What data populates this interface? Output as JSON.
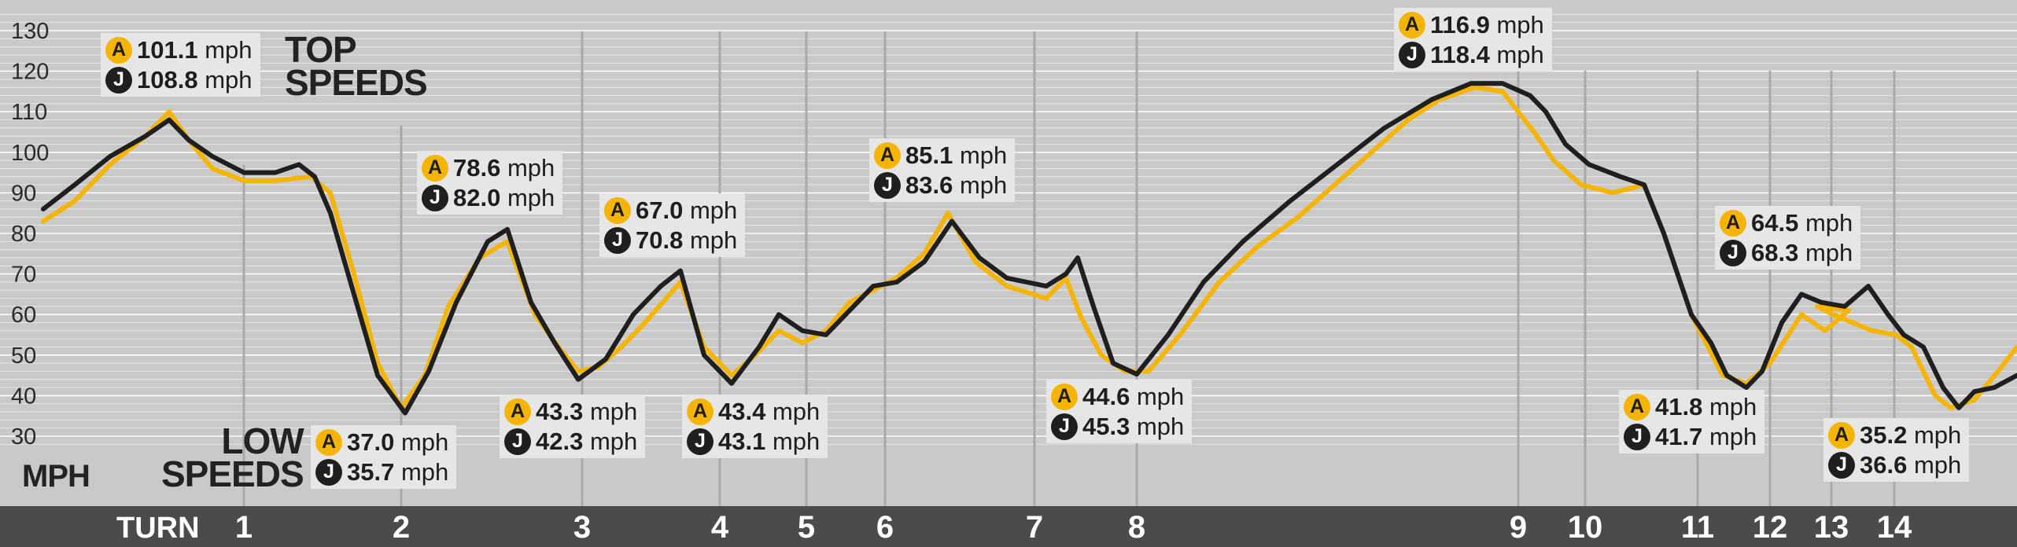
{
  "chart_data": {
    "type": "line",
    "ylabel": "MPH",
    "ylim": [
      20,
      135
    ],
    "yticks": [
      30,
      40,
      50,
      60,
      70,
      80,
      90,
      100,
      110,
      120,
      130
    ],
    "xlim": [
      0,
      2564
    ],
    "x_axis_label": "TURN",
    "colors": {
      "A": "#f4b400",
      "J": "#1f1f1f"
    },
    "series": [
      {
        "key": "A",
        "points": [
          [
            55,
            83
          ],
          [
            95,
            88
          ],
          [
            140,
            97
          ],
          [
            185,
            104
          ],
          [
            215,
            110
          ],
          [
            240,
            103
          ],
          [
            270,
            96
          ],
          [
            310,
            93
          ],
          [
            350,
            93
          ],
          [
            395,
            94
          ],
          [
            420,
            90
          ],
          [
            450,
            70
          ],
          [
            480,
            48
          ],
          [
            510,
            37
          ],
          [
            540,
            45
          ],
          [
            570,
            62
          ],
          [
            610,
            74
          ],
          [
            645,
            78
          ],
          [
            680,
            60
          ],
          [
            710,
            52
          ],
          [
            735,
            46
          ],
          [
            760,
            47
          ],
          [
            790,
            52
          ],
          [
            820,
            58
          ],
          [
            865,
            68
          ],
          [
            895,
            52
          ],
          [
            930,
            45
          ],
          [
            960,
            50
          ],
          [
            990,
            56
          ],
          [
            1020,
            53
          ],
          [
            1050,
            56
          ],
          [
            1080,
            63
          ],
          [
            1110,
            66
          ],
          [
            1140,
            69
          ],
          [
            1175,
            75
          ],
          [
            1205,
            85
          ],
          [
            1240,
            73
          ],
          [
            1280,
            67
          ],
          [
            1330,
            64
          ],
          [
            1355,
            69
          ],
          [
            1375,
            59
          ],
          [
            1400,
            50
          ],
          [
            1430,
            46
          ],
          [
            1460,
            46
          ],
          [
            1500,
            55
          ],
          [
            1550,
            68
          ],
          [
            1600,
            77
          ],
          [
            1650,
            84
          ],
          [
            1720,
            96
          ],
          [
            1790,
            108
          ],
          [
            1830,
            113
          ],
          [
            1875,
            116
          ],
          [
            1910,
            115
          ],
          [
            1950,
            105
          ],
          [
            1975,
            98
          ],
          [
            2010,
            92
          ],
          [
            2050,
            90
          ],
          [
            2090,
            92
          ],
          [
            2115,
            80
          ],
          [
            2150,
            60
          ],
          [
            2190,
            45
          ],
          [
            2220,
            43
          ],
          [
            2250,
            48
          ],
          [
            2270,
            54
          ],
          [
            2290,
            60
          ],
          [
            2320,
            56
          ],
          [
            2350,
            61
          ],
          [
            2310,
            62
          ],
          [
            2330,
            60
          ],
          [
            2355,
            58
          ],
          [
            2380,
            56
          ],
          [
            2410,
            55
          ],
          [
            2430,
            52
          ],
          [
            2460,
            40
          ],
          [
            2480,
            37
          ],
          [
            2510,
            39
          ],
          [
            2540,
            46
          ],
          [
            2564,
            52
          ]
        ]
      },
      {
        "key": "J",
        "points": [
          [
            55,
            86
          ],
          [
            95,
            92
          ],
          [
            140,
            99
          ],
          [
            185,
            104
          ],
          [
            215,
            108
          ],
          [
            240,
            103
          ],
          [
            270,
            99
          ],
          [
            310,
            95
          ],
          [
            350,
            95
          ],
          [
            380,
            97
          ],
          [
            400,
            94
          ],
          [
            420,
            85
          ],
          [
            450,
            65
          ],
          [
            480,
            45
          ],
          [
            515,
            35.7
          ],
          [
            545,
            46
          ],
          [
            580,
            63
          ],
          [
            620,
            78
          ],
          [
            645,
            81
          ],
          [
            675,
            63
          ],
          [
            705,
            53
          ],
          [
            735,
            44
          ],
          [
            770,
            49
          ],
          [
            805,
            60
          ],
          [
            840,
            67
          ],
          [
            865,
            70.8
          ],
          [
            895,
            50
          ],
          [
            930,
            43
          ],
          [
            965,
            52
          ],
          [
            990,
            60
          ],
          [
            1020,
            56
          ],
          [
            1050,
            55
          ],
          [
            1080,
            61
          ],
          [
            1110,
            67
          ],
          [
            1140,
            68
          ],
          [
            1175,
            73
          ],
          [
            1210,
            83
          ],
          [
            1245,
            74
          ],
          [
            1280,
            69
          ],
          [
            1330,
            67
          ],
          [
            1355,
            70
          ],
          [
            1370,
            74
          ],
          [
            1390,
            62
          ],
          [
            1415,
            48
          ],
          [
            1445,
            45.3
          ],
          [
            1485,
            55
          ],
          [
            1530,
            68
          ],
          [
            1580,
            78
          ],
          [
            1640,
            88
          ],
          [
            1700,
            97
          ],
          [
            1760,
            106
          ],
          [
            1820,
            113
          ],
          [
            1870,
            117
          ],
          [
            1910,
            117
          ],
          [
            1945,
            114
          ],
          [
            1965,
            110
          ],
          [
            1990,
            102
          ],
          [
            2020,
            97
          ],
          [
            2060,
            94
          ],
          [
            2090,
            92
          ],
          [
            2115,
            80
          ],
          [
            2150,
            60
          ],
          [
            2175,
            53
          ],
          [
            2195,
            45
          ],
          [
            2220,
            42
          ],
          [
            2240,
            46
          ],
          [
            2265,
            58
          ],
          [
            2290,
            65
          ],
          [
            2315,
            63
          ],
          [
            2345,
            62
          ],
          [
            2375,
            67
          ],
          [
            2400,
            60
          ],
          [
            2420,
            55
          ],
          [
            2445,
            52
          ],
          [
            2470,
            42
          ],
          [
            2490,
            37
          ],
          [
            2510,
            41
          ],
          [
            2535,
            42
          ],
          [
            2564,
            45
          ]
        ]
      }
    ],
    "turns": [
      {
        "label": "1",
        "x": 310
      },
      {
        "label": "2",
        "x": 510
      },
      {
        "label": "3",
        "x": 740
      },
      {
        "label": "4",
        "x": 915
      },
      {
        "label": "5",
        "x": 1025
      },
      {
        "label": "6",
        "x": 1125
      },
      {
        "label": "7",
        "x": 1315
      },
      {
        "label": "8",
        "x": 1445
      },
      {
        "label": "9",
        "x": 1930
      },
      {
        "label": "10",
        "x": 2015
      },
      {
        "label": "11",
        "x": 2158
      },
      {
        "label": "12",
        "x": 2250
      },
      {
        "label": "13",
        "x": 2328
      },
      {
        "label": "14",
        "x": 2408
      }
    ]
  },
  "labels": {
    "top_speeds_line1": "TOP",
    "top_speeds_line2": "SPEEDS",
    "low_speeds_line1": "LOW",
    "low_speeds_line2": "SPEEDS",
    "unit": "MPH",
    "turn_word": "TURN"
  },
  "callouts": [
    {
      "a": "101.1",
      "j": "108.8"
    },
    {
      "a": "78.6",
      "j": "82.0"
    },
    {
      "a": "67.0",
      "j": "70.8"
    },
    {
      "a": "85.1",
      "j": "83.6"
    },
    {
      "a": "116.9",
      "j": "118.4"
    },
    {
      "a": "64.5",
      "j": "68.3"
    },
    {
      "a": "37.0",
      "j": "35.7"
    },
    {
      "a": "43.3",
      "j": "42.3"
    },
    {
      "a": "43.4",
      "j": "43.1"
    },
    {
      "a": "44.6",
      "j": "45.3"
    },
    {
      "a": "41.8",
      "j": "41.7"
    },
    {
      "a": "35.2",
      "j": "36.6"
    }
  ],
  "badge_a": "A",
  "badge_j": "J",
  "unit_suffix": "mph"
}
